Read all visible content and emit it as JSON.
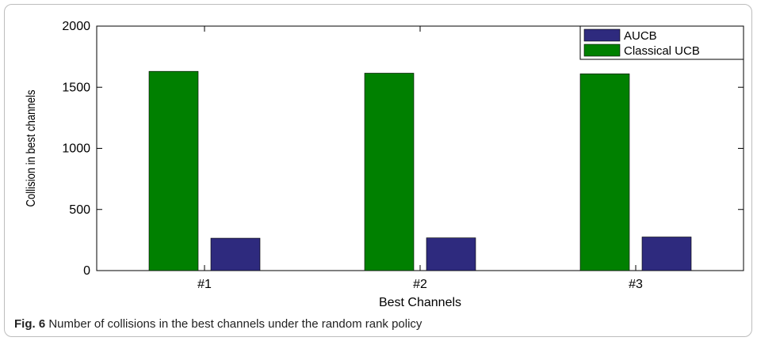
{
  "chart_data": {
    "type": "bar",
    "categories": [
      "#1",
      "#2",
      "#3"
    ],
    "series": [
      {
        "name": "Classical UCB",
        "values": [
          1630,
          1615,
          1610
        ],
        "color": "#008000"
      },
      {
        "name": "AUCB",
        "values": [
          265,
          268,
          275
        ],
        "color": "#2e2a7e"
      }
    ],
    "legend_order": [
      "AUCB",
      "Classical UCB"
    ],
    "legend_position": "top-right",
    "xlabel": "Best Channels",
    "ylabel": "Collision in best channels",
    "ylim": [
      0,
      2000
    ],
    "yticks": [
      "0",
      "500",
      "1000",
      "1500",
      "2000"
    ],
    "grid": false
  },
  "caption": {
    "label": "Fig. 6",
    "text": "Number of collisions in the best channels under the random rank policy"
  }
}
